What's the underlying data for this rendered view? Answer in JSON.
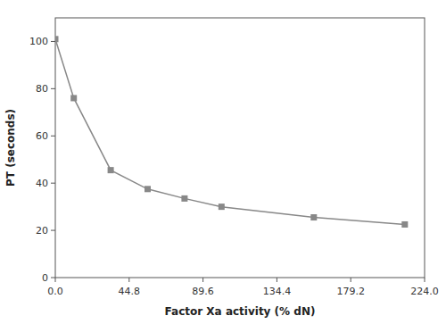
{
  "chart_data": {
    "type": "line",
    "xlabel": "Factor Xa activity (% dN)",
    "ylabel": "PT (seconds)",
    "x": [
      0.0,
      11.2,
      33.6,
      56.0,
      78.4,
      100.8,
      156.8,
      212.0
    ],
    "series": [
      {
        "values": [
          101.0,
          76.0,
          45.5,
          37.5,
          33.5,
          30.0,
          25.5,
          22.5
        ],
        "color": "#888888",
        "marker": "square"
      }
    ],
    "xlim": [
      0,
      224.0
    ],
    "ylim": [
      0,
      110
    ],
    "xticks": [
      {
        "value": 0,
        "label": "0.0"
      },
      44.8,
      89.6,
      134.4,
      179.2,
      {
        "value": 224,
        "label": "224.0"
      }
    ],
    "yticks": [
      0,
      20,
      40,
      60,
      80,
      100
    ],
    "grid": false
  }
}
